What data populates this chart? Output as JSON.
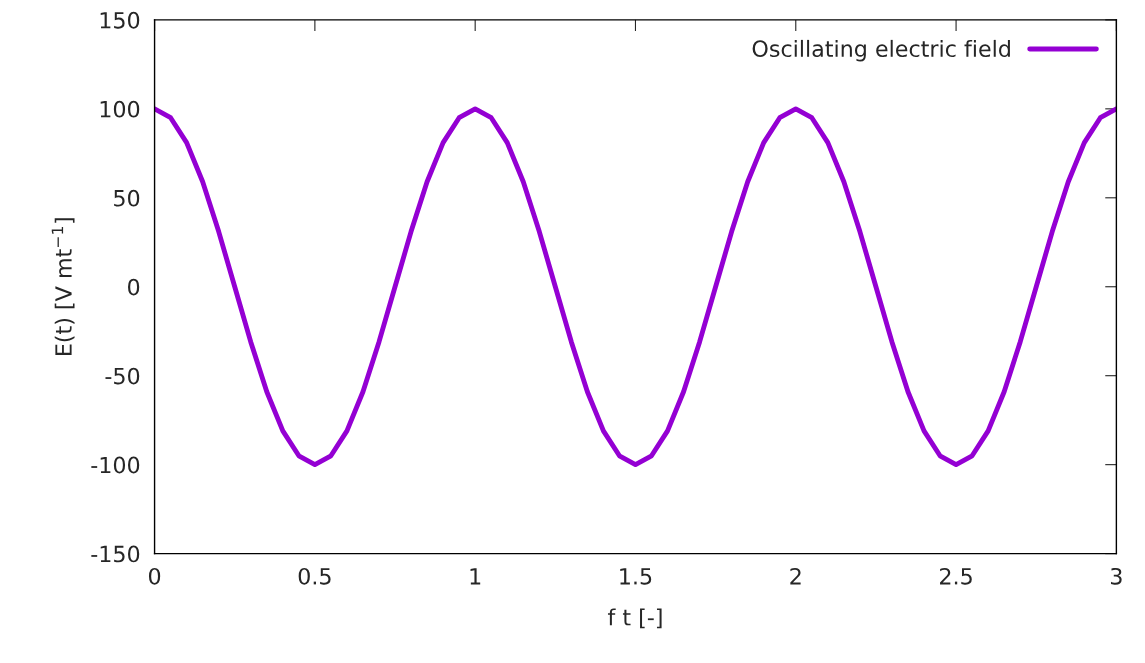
{
  "chart_data": {
    "type": "line",
    "xlabel": "f t [-]",
    "ylabel": "E(t) [V mt$^{−1}$]",
    "x": [
      0,
      0.05,
      0.1,
      0.15,
      0.2,
      0.25,
      0.3,
      0.35,
      0.4,
      0.45,
      0.5,
      0.55,
      0.6,
      0.65,
      0.7,
      0.75,
      0.8,
      0.85,
      0.9,
      0.95,
      1,
      1.05,
      1.1,
      1.15,
      1.2,
      1.25,
      1.3,
      1.35,
      1.4,
      1.45,
      1.5,
      1.55,
      1.6,
      1.65,
      1.7,
      1.75,
      1.8,
      1.85,
      1.9,
      1.95,
      2,
      2.05,
      2.1,
      2.15,
      2.2,
      2.25,
      2.3,
      2.35,
      2.4,
      2.45,
      2.5,
      2.55,
      2.6,
      2.65,
      2.7,
      2.75,
      2.8,
      2.85,
      2.9,
      2.95,
      3
    ],
    "series": [
      {
        "name": "Oscillating electric field",
        "color": "#9400d3",
        "values": [
          100,
          95,
          81,
          59,
          31,
          0,
          -31,
          -59,
          -81,
          -95,
          -100,
          -95,
          -81,
          -59,
          -31,
          0,
          31,
          59,
          81,
          95,
          100,
          95,
          81,
          59,
          31,
          0,
          -31,
          -59,
          -81,
          -95,
          -100,
          -95,
          -81,
          -59,
          -31,
          0,
          31,
          59,
          81,
          95,
          100,
          95,
          81,
          59,
          31,
          0,
          -31,
          -59,
          -81,
          -95,
          -100,
          -95,
          -81,
          -59,
          -31,
          0,
          31,
          59,
          81,
          95,
          100
        ]
      }
    ],
    "xlim": [
      0,
      3
    ],
    "ylim": [
      -150,
      150
    ],
    "xticks": [
      0,
      0.5,
      1,
      1.5,
      2,
      2.5,
      3
    ],
    "yticks": [
      -150,
      -100,
      -50,
      0,
      50,
      100,
      150
    ],
    "legend": "top right",
    "grid": false,
    "line_style": "solid",
    "marker": "none"
  }
}
